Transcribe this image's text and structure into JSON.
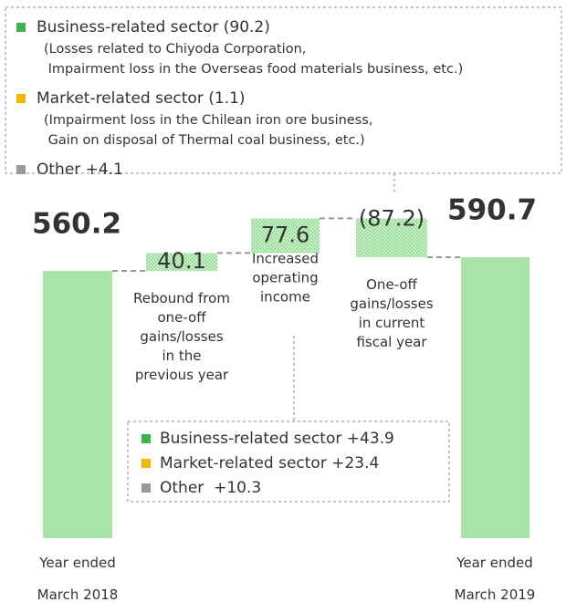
{
  "chart_data": {
    "type": "waterfall",
    "categories": [
      "Year ended\nMarch 2018",
      "Rebound from\none-off\ngains/losses\nin the\nprevious year",
      "Increased\noperating\nincome",
      "One-off\ngains/losses\nin current\nfiscal year",
      "Year ended\nMarch 2019"
    ],
    "values": [
      560.2,
      40.1,
      77.6,
      -87.2,
      590.7
    ],
    "value_labels": [
      "560.2",
      "40.1",
      "77.6",
      "(87.2)",
      "590.7"
    ],
    "total_color": "#a8e4a8",
    "delta_color": "#a8e4a8",
    "breakdown_one_off": [
      {
        "text": "Business-related sector (90.2)",
        "color": "#3cb44b",
        "note": "(Losses related to Chiyoda Corporation,\n Impairment loss in the Overseas food materials business, etc.)"
      },
      {
        "text": "Market-related sector (1.1)",
        "color": "#f5b800",
        "note": "(Impairment loss in the Chilean iron ore business,\n Gain on disposal of Thermal coal business, etc.)"
      },
      {
        "text": "Other +4.1",
        "color": "#999999"
      }
    ],
    "breakdown_operating": [
      {
        "text": "Business-related sector +43.9",
        "color": "#3cb44b"
      },
      {
        "text": "Market-related sector +23.4",
        "color": "#f5b800"
      },
      {
        "text": "Other  +10.3",
        "color": "#999999"
      }
    ]
  }
}
